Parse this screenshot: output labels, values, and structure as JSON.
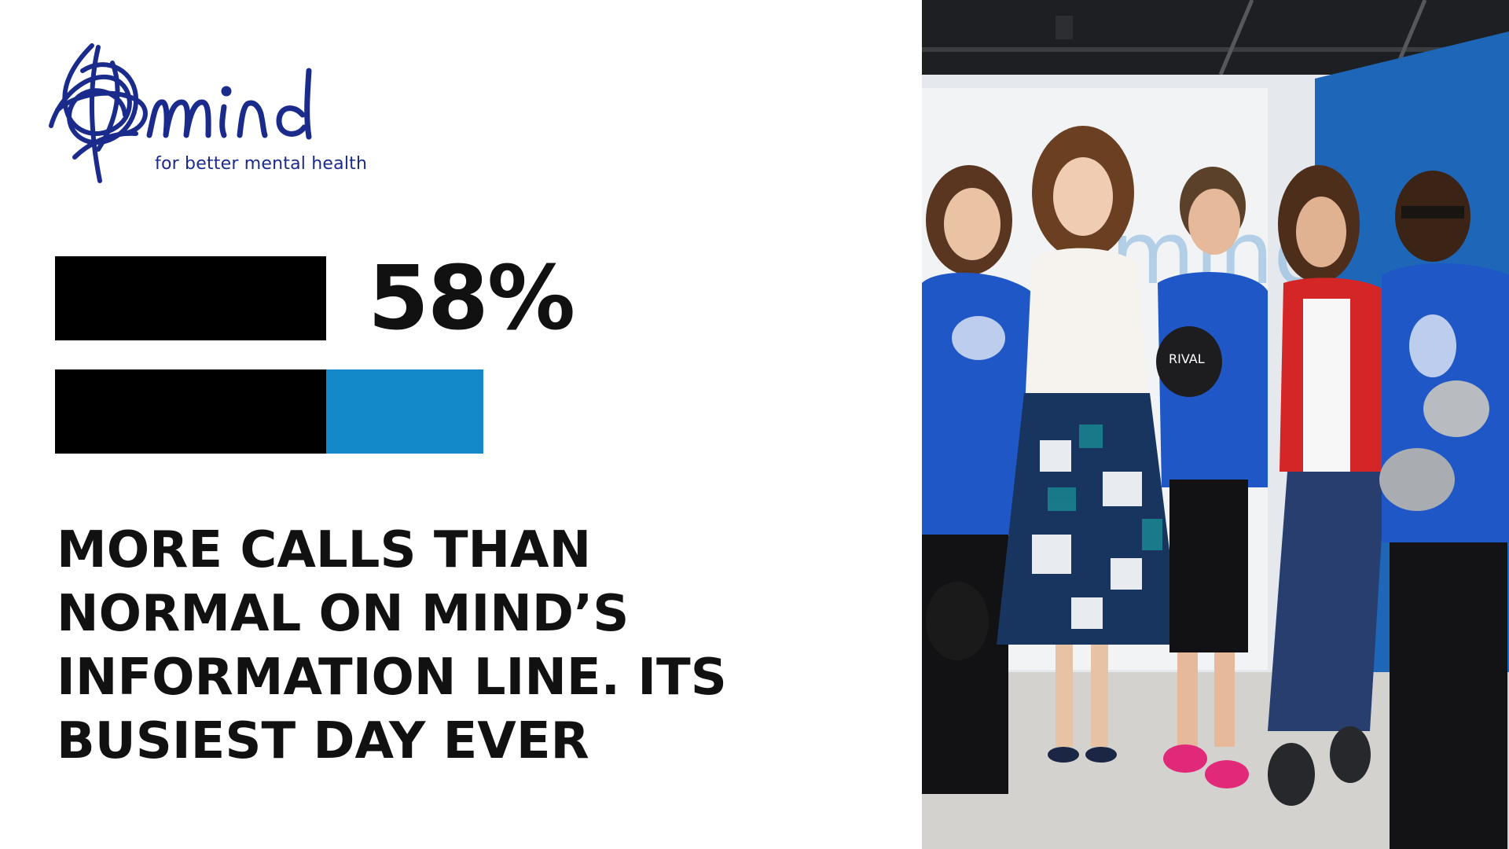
{
  "brand": {
    "logo_text": "mind",
    "tagline": "for better mental health",
    "brand_color": "#1a2b8c"
  },
  "stat": {
    "percent_label": "58%",
    "percent_increase": 58,
    "bar_normal_color": "#000000",
    "bar_extra_color": "#1389c9"
  },
  "headline": {
    "lines": [
      "MORE CALLS THAN",
      "NORMAL ON MIND’S",
      "INFORMATION LINE. ITS",
      "BUSIEST DAY EVER"
    ]
  },
  "photo": {
    "subject": "group-photo",
    "banner_text": "mind",
    "glove_text": "RIVAL"
  }
}
